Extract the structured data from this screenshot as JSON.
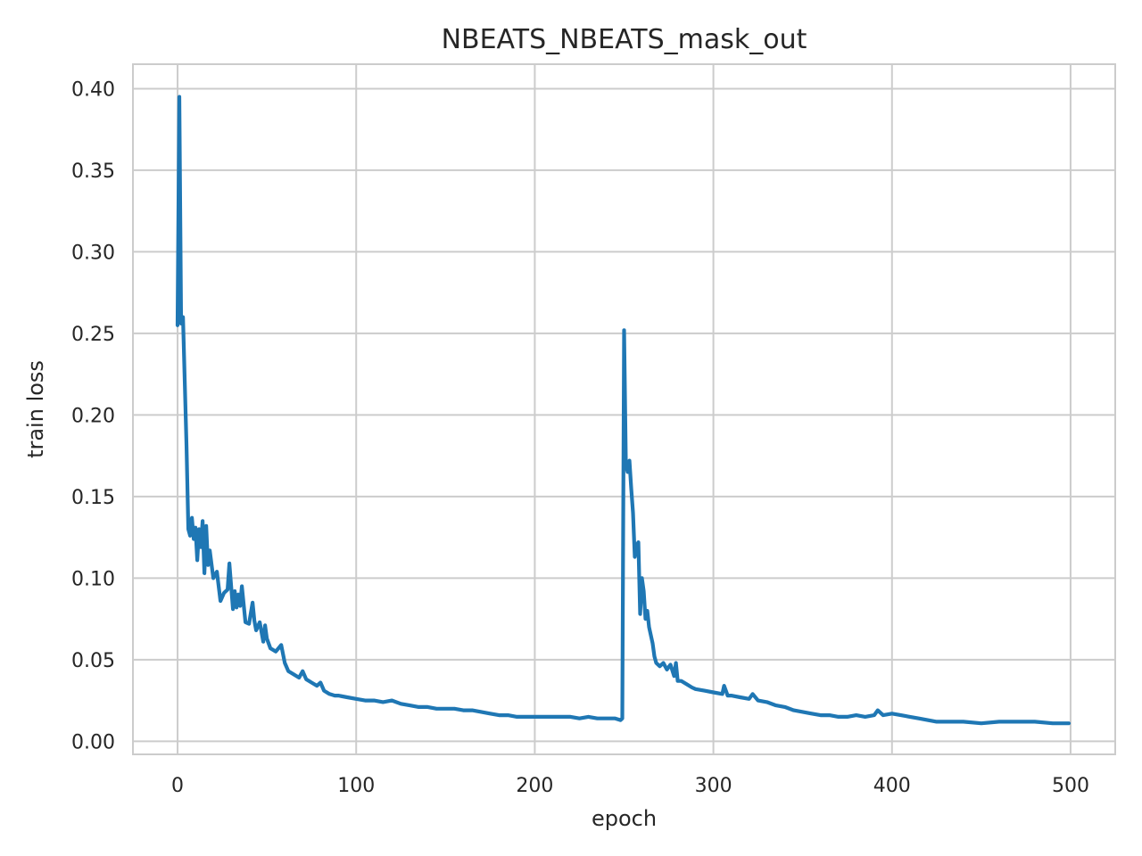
{
  "chart_data": {
    "type": "line",
    "title": "NBEATS_NBEATS_mask_out",
    "xlabel": "epoch",
    "ylabel": "train loss",
    "xlim": [
      -25,
      525
    ],
    "ylim": [
      -0.008,
      0.415
    ],
    "xticks": [
      0,
      100,
      200,
      300,
      400,
      500
    ],
    "yticks": [
      0.0,
      0.05,
      0.1,
      0.15,
      0.2,
      0.25,
      0.3,
      0.35,
      0.4
    ],
    "xtick_labels": [
      "0",
      "100",
      "200",
      "300",
      "400",
      "500"
    ],
    "ytick_labels": [
      "0.00",
      "0.05",
      "0.10",
      "0.15",
      "0.20",
      "0.25",
      "0.30",
      "0.35",
      "0.40"
    ],
    "grid": true,
    "color": "#1f77b4",
    "series": [
      {
        "x": [
          0,
          1,
          2,
          3,
          4,
          5,
          6,
          7,
          8,
          9,
          10,
          11,
          12,
          13,
          14,
          15,
          16,
          17,
          18,
          20,
          22,
          24,
          26,
          28,
          29,
          30,
          31,
          32,
          33,
          34,
          35,
          36,
          38,
          40,
          42,
          43,
          44,
          46,
          48,
          49,
          50,
          52,
          55,
          58,
          60,
          62,
          65,
          68,
          70,
          72,
          75,
          78,
          80,
          82,
          85,
          88,
          90,
          95,
          100,
          105,
          110,
          115,
          120,
          125,
          130,
          135,
          140,
          145,
          150,
          155,
          160,
          165,
          170,
          175,
          180,
          185,
          190,
          195,
          200,
          205,
          210,
          215,
          220,
          225,
          230,
          235,
          240,
          245,
          248,
          249,
          250,
          251,
          252,
          253,
          254,
          255,
          256,
          257,
          258,
          259,
          260,
          261,
          262,
          263,
          264,
          265,
          266,
          267,
          268,
          270,
          272,
          274,
          276,
          278,
          279,
          280,
          282,
          285,
          288,
          290,
          295,
          300,
          305,
          306,
          308,
          310,
          315,
          320,
          322,
          325,
          330,
          335,
          340,
          345,
          350,
          355,
          360,
          365,
          370,
          375,
          380,
          385,
          390,
          392,
          395,
          400,
          405,
          410,
          415,
          420,
          425,
          430,
          440,
          450,
          460,
          470,
          480,
          490,
          495,
          499
        ],
        "y": [
          0.255,
          0.395,
          0.256,
          0.26,
          0.22,
          0.18,
          0.13,
          0.126,
          0.137,
          0.124,
          0.131,
          0.111,
          0.13,
          0.119,
          0.135,
          0.103,
          0.132,
          0.108,
          0.117,
          0.1,
          0.104,
          0.086,
          0.091,
          0.093,
          0.109,
          0.095,
          0.081,
          0.092,
          0.082,
          0.09,
          0.083,
          0.095,
          0.073,
          0.072,
          0.085,
          0.074,
          0.068,
          0.073,
          0.061,
          0.071,
          0.063,
          0.057,
          0.055,
          0.059,
          0.048,
          0.043,
          0.041,
          0.039,
          0.043,
          0.038,
          0.036,
          0.034,
          0.036,
          0.031,
          0.029,
          0.028,
          0.028,
          0.027,
          0.026,
          0.025,
          0.025,
          0.024,
          0.025,
          0.023,
          0.022,
          0.021,
          0.021,
          0.02,
          0.02,
          0.02,
          0.019,
          0.019,
          0.018,
          0.017,
          0.016,
          0.016,
          0.015,
          0.015,
          0.015,
          0.015,
          0.015,
          0.015,
          0.015,
          0.014,
          0.015,
          0.014,
          0.014,
          0.014,
          0.013,
          0.014,
          0.252,
          0.17,
          0.165,
          0.172,
          0.155,
          0.14,
          0.113,
          0.12,
          0.122,
          0.078,
          0.1,
          0.092,
          0.075,
          0.08,
          0.07,
          0.065,
          0.06,
          0.052,
          0.048,
          0.046,
          0.048,
          0.044,
          0.047,
          0.04,
          0.048,
          0.037,
          0.037,
          0.035,
          0.033,
          0.032,
          0.031,
          0.03,
          0.029,
          0.034,
          0.028,
          0.028,
          0.027,
          0.026,
          0.029,
          0.025,
          0.024,
          0.022,
          0.021,
          0.019,
          0.018,
          0.017,
          0.016,
          0.016,
          0.015,
          0.015,
          0.016,
          0.015,
          0.016,
          0.019,
          0.016,
          0.017,
          0.016,
          0.015,
          0.014,
          0.013,
          0.012,
          0.012,
          0.012,
          0.011,
          0.012,
          0.012,
          0.012,
          0.011,
          0.011,
          0.011
        ]
      }
    ]
  }
}
